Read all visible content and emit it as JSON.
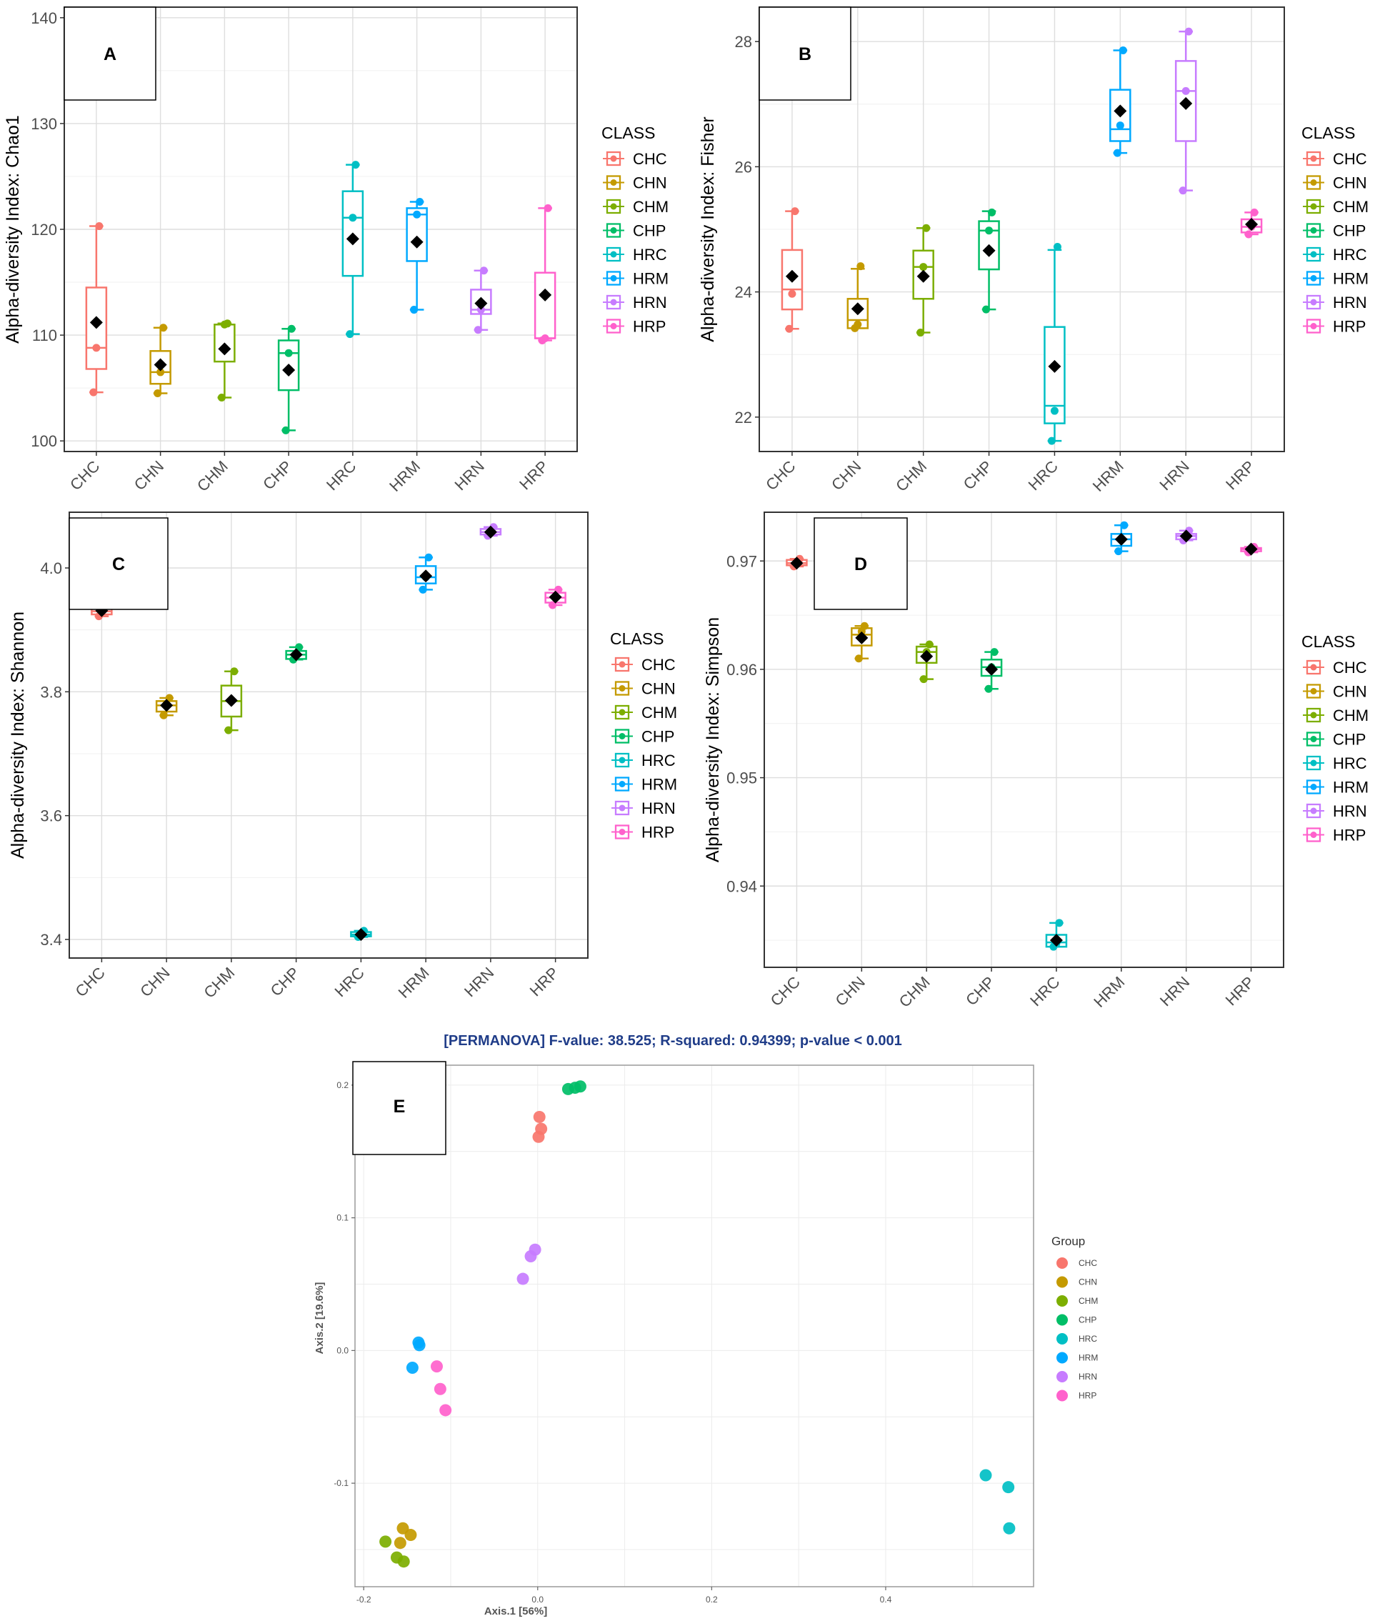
{
  "figure": {
    "classes": [
      "CHC",
      "CHN",
      "CHM",
      "CHP",
      "HRC",
      "HRM",
      "HRN",
      "HRP"
    ],
    "colors": {
      "CHC": "#F8766D",
      "CHN": "#C49A00",
      "CHM": "#7CAE00",
      "CHP": "#00BE67",
      "HRC": "#00BFC4",
      "HRM": "#00A9FF",
      "HRN": "#C77CFF",
      "HRP": "#FF61CC"
    },
    "legend_title": "CLASS"
  },
  "chart_data": [
    {
      "id": "A",
      "type": "box",
      "panel_label": "A",
      "ylabel": "Alpha-diversity Index: Chao1",
      "ylim": [
        99,
        141
      ],
      "yticks": [
        "100",
        "110",
        "120",
        "130",
        "140"
      ],
      "groups": [
        {
          "name": "CHC",
          "q1": 106.8,
          "median": 108.8,
          "q3": 114.5,
          "lo": 104.6,
          "hi": 120.3,
          "mean": 111.2,
          "points": [
            104.6,
            108.8,
            120.3
          ]
        },
        {
          "name": "CHN",
          "q1": 105.4,
          "median": 106.5,
          "q3": 108.5,
          "lo": 104.5,
          "hi": 110.7,
          "mean": 107.2,
          "points": [
            104.5,
            106.5,
            110.7
          ]
        },
        {
          "name": "CHM",
          "q1": 107.5,
          "median": 111.0,
          "q3": 111.0,
          "lo": 104.1,
          "hi": 111.1,
          "mean": 108.7,
          "points": [
            104.1,
            111.0,
            111.1
          ]
        },
        {
          "name": "CHP",
          "q1": 104.8,
          "median": 108.3,
          "q3": 109.5,
          "lo": 101.0,
          "hi": 110.6,
          "mean": 106.7,
          "points": [
            101.0,
            108.3,
            110.6
          ]
        },
        {
          "name": "HRC",
          "q1": 115.6,
          "median": 121.1,
          "q3": 123.6,
          "lo": 110.1,
          "hi": 126.1,
          "mean": 119.1,
          "points": [
            110.1,
            121.1,
            126.1
          ]
        },
        {
          "name": "HRM",
          "q1": 117.0,
          "median": 121.4,
          "q3": 122.0,
          "lo": 112.4,
          "hi": 122.6,
          "mean": 118.8,
          "points": [
            112.4,
            121.4,
            122.6
          ]
        },
        {
          "name": "HRN",
          "q1": 112.0,
          "median": 112.4,
          "q3": 114.3,
          "lo": 110.5,
          "hi": 116.1,
          "mean": 113.0,
          "points": [
            110.5,
            112.4,
            116.1
          ]
        },
        {
          "name": "HRP",
          "q1": 109.7,
          "median": 109.7,
          "q3": 115.9,
          "lo": 109.5,
          "hi": 122.0,
          "mean": 113.8,
          "points": [
            109.5,
            109.7,
            122.0
          ]
        }
      ]
    },
    {
      "id": "B",
      "type": "box",
      "panel_label": "B",
      "ylabel": "Alpha-diversity Index: Fisher",
      "ylim": [
        21.45,
        28.55
      ],
      "yticks": [
        "22",
        "24",
        "26",
        "28"
      ],
      "groups": [
        {
          "name": "CHC",
          "q1": 23.72,
          "median": 24.04,
          "q3": 24.67,
          "lo": 23.41,
          "hi": 25.29,
          "mean": 24.25,
          "points": [
            23.41,
            23.97,
            25.29
          ]
        },
        {
          "name": "CHN",
          "q1": 23.42,
          "median": 23.55,
          "q3": 23.89,
          "lo": 23.42,
          "hi": 24.37,
          "mean": 23.73,
          "points": [
            23.42,
            23.48,
            24.41
          ]
        },
        {
          "name": "CHM",
          "q1": 23.89,
          "median": 24.4,
          "q3": 24.66,
          "lo": 23.35,
          "hi": 25.02,
          "mean": 24.25,
          "points": [
            23.35,
            24.4,
            25.02
          ]
        },
        {
          "name": "CHP",
          "q1": 24.36,
          "median": 24.98,
          "q3": 25.13,
          "lo": 23.72,
          "hi": 25.29,
          "mean": 24.66,
          "points": [
            23.72,
            24.98,
            25.27
          ]
        },
        {
          "name": "HRC",
          "q1": 21.9,
          "median": 22.18,
          "q3": 23.44,
          "lo": 21.62,
          "hi": 24.67,
          "mean": 22.81,
          "points": [
            21.62,
            22.1,
            24.72
          ]
        },
        {
          "name": "HRM",
          "q1": 26.41,
          "median": 26.6,
          "q3": 27.23,
          "lo": 26.22,
          "hi": 27.86,
          "mean": 26.89,
          "points": [
            26.22,
            26.66,
            27.86
          ]
        },
        {
          "name": "HRN",
          "q1": 26.41,
          "median": 27.21,
          "q3": 27.69,
          "lo": 25.62,
          "hi": 28.16,
          "mean": 27.01,
          "points": [
            25.62,
            27.21,
            28.16
          ]
        },
        {
          "name": "HRP",
          "q1": 24.95,
          "median": 25.04,
          "q3": 25.16,
          "lo": 24.92,
          "hi": 25.27,
          "mean": 25.08,
          "points": [
            24.92,
            25.04,
            25.27
          ]
        }
      ]
    },
    {
      "id": "C",
      "type": "box",
      "panel_label": "C",
      "ylabel": "Alpha-diversity Index: Shannon",
      "ylim": [
        3.37,
        4.09
      ],
      "yticks": [
        "3.4",
        "3.6",
        "3.8",
        "4.0"
      ],
      "groups": [
        {
          "name": "CHC",
          "q1": 3.925,
          "median": 3.93,
          "q3": 3.938,
          "lo": 3.922,
          "hi": 3.942,
          "mean": 3.931,
          "points": [
            3.922,
            3.93,
            3.94
          ]
        },
        {
          "name": "CHN",
          "q1": 3.768,
          "median": 3.778,
          "q3": 3.785,
          "lo": 3.762,
          "hi": 3.79,
          "mean": 3.778,
          "points": [
            3.762,
            3.78,
            3.79
          ]
        },
        {
          "name": "CHM",
          "q1": 3.76,
          "median": 3.785,
          "q3": 3.81,
          "lo": 3.738,
          "hi": 3.833,
          "mean": 3.786,
          "points": [
            3.738,
            3.785,
            3.833
          ]
        },
        {
          "name": "CHP",
          "q1": 3.853,
          "median": 3.86,
          "q3": 3.866,
          "lo": 3.852,
          "hi": 3.872,
          "mean": 3.86,
          "points": [
            3.852,
            3.86,
            3.872
          ]
        },
        {
          "name": "HRC",
          "q1": 3.405,
          "median": 3.408,
          "q3": 3.412,
          "lo": 3.404,
          "hi": 3.414,
          "mean": 3.408,
          "points": [
            3.404,
            3.408,
            3.414
          ]
        },
        {
          "name": "HRM",
          "q1": 3.975,
          "median": 3.985,
          "q3": 4.003,
          "lo": 3.965,
          "hi": 4.017,
          "mean": 3.987,
          "points": [
            3.965,
            3.985,
            4.017
          ]
        },
        {
          "name": "HRN",
          "q1": 4.054,
          "median": 4.058,
          "q3": 4.063,
          "lo": 4.052,
          "hi": 4.066,
          "mean": 4.058,
          "points": [
            4.052,
            4.058,
            4.066
          ]
        },
        {
          "name": "HRP",
          "q1": 3.944,
          "median": 3.952,
          "q3": 3.96,
          "lo": 3.94,
          "hi": 3.965,
          "mean": 3.953,
          "points": [
            3.94,
            3.952,
            3.965
          ]
        }
      ]
    },
    {
      "id": "D",
      "type": "box",
      "panel_label": "D",
      "ylabel": "Alpha-diversity Index: Simpson",
      "ylim": [
        0.9325,
        0.9745
      ],
      "yticks": [
        "0.94",
        "0.95",
        "0.96",
        "0.97"
      ],
      "groups": [
        {
          "name": "CHC",
          "q1": 0.9696,
          "median": 0.9698,
          "q3": 0.9701,
          "lo": 0.9695,
          "hi": 0.9702,
          "mean": 0.9698,
          "points": [
            0.9695,
            0.9698,
            0.9702
          ]
        },
        {
          "name": "CHN",
          "q1": 0.9622,
          "median": 0.9632,
          "q3": 0.9638,
          "lo": 0.961,
          "hi": 0.964,
          "mean": 0.9629,
          "points": [
            0.961,
            0.9635,
            0.964
          ]
        },
        {
          "name": "CHM",
          "q1": 0.9606,
          "median": 0.9616,
          "q3": 0.9621,
          "lo": 0.9591,
          "hi": 0.9623,
          "mean": 0.9612,
          "points": [
            0.9591,
            0.9616,
            0.9623
          ]
        },
        {
          "name": "CHP",
          "q1": 0.9594,
          "median": 0.9602,
          "q3": 0.9609,
          "lo": 0.9582,
          "hi": 0.9616,
          "mean": 0.96,
          "points": [
            0.9582,
            0.9602,
            0.9616
          ]
        },
        {
          "name": "HRC",
          "q1": 0.9344,
          "median": 0.9348,
          "q3": 0.9355,
          "lo": 0.9344,
          "hi": 0.9366,
          "mean": 0.935,
          "points": [
            0.9344,
            0.9347,
            0.9366
          ]
        },
        {
          "name": "HRM",
          "q1": 0.9714,
          "median": 0.972,
          "q3": 0.9725,
          "lo": 0.9709,
          "hi": 0.9733,
          "mean": 0.972,
          "points": [
            0.9709,
            0.972,
            0.9733
          ]
        },
        {
          "name": "HRN",
          "q1": 0.972,
          "median": 0.9723,
          "q3": 0.9725,
          "lo": 0.9719,
          "hi": 0.9728,
          "mean": 0.9723,
          "points": [
            0.9719,
            0.9723,
            0.9728
          ]
        },
        {
          "name": "HRP",
          "q1": 0.9709,
          "median": 0.9711,
          "q3": 0.9712,
          "lo": 0.9708,
          "hi": 0.9713,
          "mean": 0.9711,
          "points": [
            0.9708,
            0.9711,
            0.9713
          ]
        }
      ]
    },
    {
      "id": "E",
      "type": "scatter",
      "panel_label": "E",
      "title": "[PERMANOVA] F-value: 38.525; R-squared: 0.94399; p-value < 0.001",
      "xlabel": "Axis.1   [56%]",
      "ylabel": "Axis.2   [19.6%]",
      "xlim": [
        -0.21,
        0.57
      ],
      "ylim": [
        -0.178,
        0.215
      ],
      "xticks": [
        "-0.2",
        "0.0",
        "0.2",
        "0.4"
      ],
      "yticks": [
        "-0.1",
        "0.0",
        "0.1",
        "0.2"
      ],
      "legend_title": "Group",
      "series": [
        {
          "name": "CHC",
          "points": [
            [
              0.002,
              0.176
            ],
            [
              0.004,
              0.167
            ],
            [
              0.001,
              0.161
            ]
          ]
        },
        {
          "name": "CHN",
          "points": [
            [
              -0.155,
              -0.134
            ],
            [
              -0.158,
              -0.145
            ],
            [
              -0.146,
              -0.139
            ]
          ]
        },
        {
          "name": "CHM",
          "points": [
            [
              -0.175,
              -0.144
            ],
            [
              -0.162,
              -0.156
            ],
            [
              -0.154,
              -0.159
            ]
          ]
        },
        {
          "name": "CHP",
          "points": [
            [
              0.035,
              0.197
            ],
            [
              0.043,
              0.198
            ],
            [
              0.049,
              0.199
            ]
          ]
        },
        {
          "name": "HRC",
          "points": [
            [
              0.515,
              -0.094
            ],
            [
              0.541,
              -0.103
            ],
            [
              0.542,
              -0.134
            ]
          ]
        },
        {
          "name": "HRM",
          "points": [
            [
              -0.136,
              0.004
            ],
            [
              -0.137,
              0.006
            ],
            [
              -0.144,
              -0.013
            ]
          ]
        },
        {
          "name": "HRN",
          "points": [
            [
              -0.017,
              0.054
            ],
            [
              -0.008,
              0.071
            ],
            [
              -0.003,
              0.076
            ]
          ]
        },
        {
          "name": "HRP",
          "points": [
            [
              -0.116,
              -0.012
            ],
            [
              -0.112,
              -0.029
            ],
            [
              -0.106,
              -0.045
            ]
          ]
        }
      ]
    }
  ]
}
